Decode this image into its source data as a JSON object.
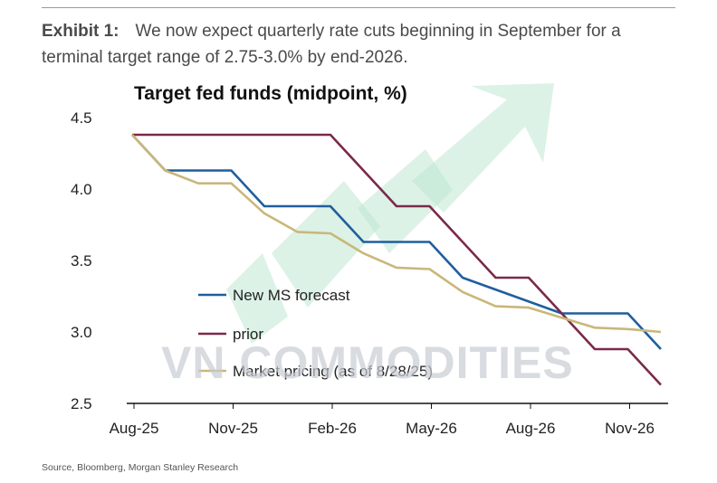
{
  "exhibit": {
    "label": "Exhibit 1:",
    "text": "We now expect quarterly rate cuts beginning in September for a terminal target range of 2.75-3.0% by end-2026."
  },
  "watermark": "VN COMMODITIES",
  "source": "Source, Bloomberg, Morgan Stanley Research",
  "colors": {
    "new": "#1f5f9e",
    "prior": "#7a2a4a",
    "market": "#c9b77a",
    "arrow": "#bfe8d2"
  },
  "chart_data": {
    "type": "line",
    "title": "Target fed funds (midpoint, %)",
    "xlabel": "",
    "ylabel": "",
    "ylim": [
      2.5,
      4.5
    ],
    "yticks": [
      "4.5",
      "4.0",
      "3.5",
      "3.0",
      "2.5"
    ],
    "xticks": [
      "Aug-25",
      "Nov-25",
      "Feb-26",
      "May-26",
      "Aug-26",
      "Nov-26"
    ],
    "xlim": [
      0,
      16
    ],
    "legend_position": "lower-left",
    "series": [
      {
        "name": "New MS forecast",
        "color": "#1f5f9e",
        "step": true,
        "points": [
          [
            0.0,
            4.38
          ],
          [
            1.0,
            4.13
          ],
          [
            3.0,
            4.13
          ],
          [
            4.0,
            3.88
          ],
          [
            6.0,
            3.88
          ],
          [
            7.0,
            3.63
          ],
          [
            9.0,
            3.63
          ],
          [
            10.0,
            3.38
          ],
          [
            13.0,
            3.13
          ],
          [
            15.0,
            3.13
          ],
          [
            16.0,
            2.88
          ]
        ]
      },
      {
        "name": "prior",
        "color": "#7a2a4a",
        "step": false,
        "points": [
          [
            0.0,
            4.38
          ],
          [
            6.0,
            4.38
          ],
          [
            8.0,
            3.88
          ],
          [
            9.0,
            3.88
          ],
          [
            11.0,
            3.38
          ],
          [
            12.0,
            3.38
          ],
          [
            14.0,
            2.88
          ],
          [
            15.0,
            2.88
          ],
          [
            16.0,
            2.63
          ]
        ]
      },
      {
        "name": "Market pricing (as of 8/28/25)",
        "color": "#c9b77a",
        "step": false,
        "points": [
          [
            0.0,
            4.38
          ],
          [
            1.0,
            4.13
          ],
          [
            2.0,
            4.04
          ],
          [
            3.0,
            4.04
          ],
          [
            4.0,
            3.83
          ],
          [
            5.0,
            3.7
          ],
          [
            6.0,
            3.69
          ],
          [
            7.0,
            3.55
          ],
          [
            8.0,
            3.45
          ],
          [
            9.0,
            3.44
          ],
          [
            10.0,
            3.28
          ],
          [
            11.0,
            3.18
          ],
          [
            12.0,
            3.17
          ],
          [
            13.0,
            3.1
          ],
          [
            14.0,
            3.03
          ],
          [
            15.0,
            3.02
          ],
          [
            16.0,
            3.0
          ]
        ]
      }
    ]
  }
}
